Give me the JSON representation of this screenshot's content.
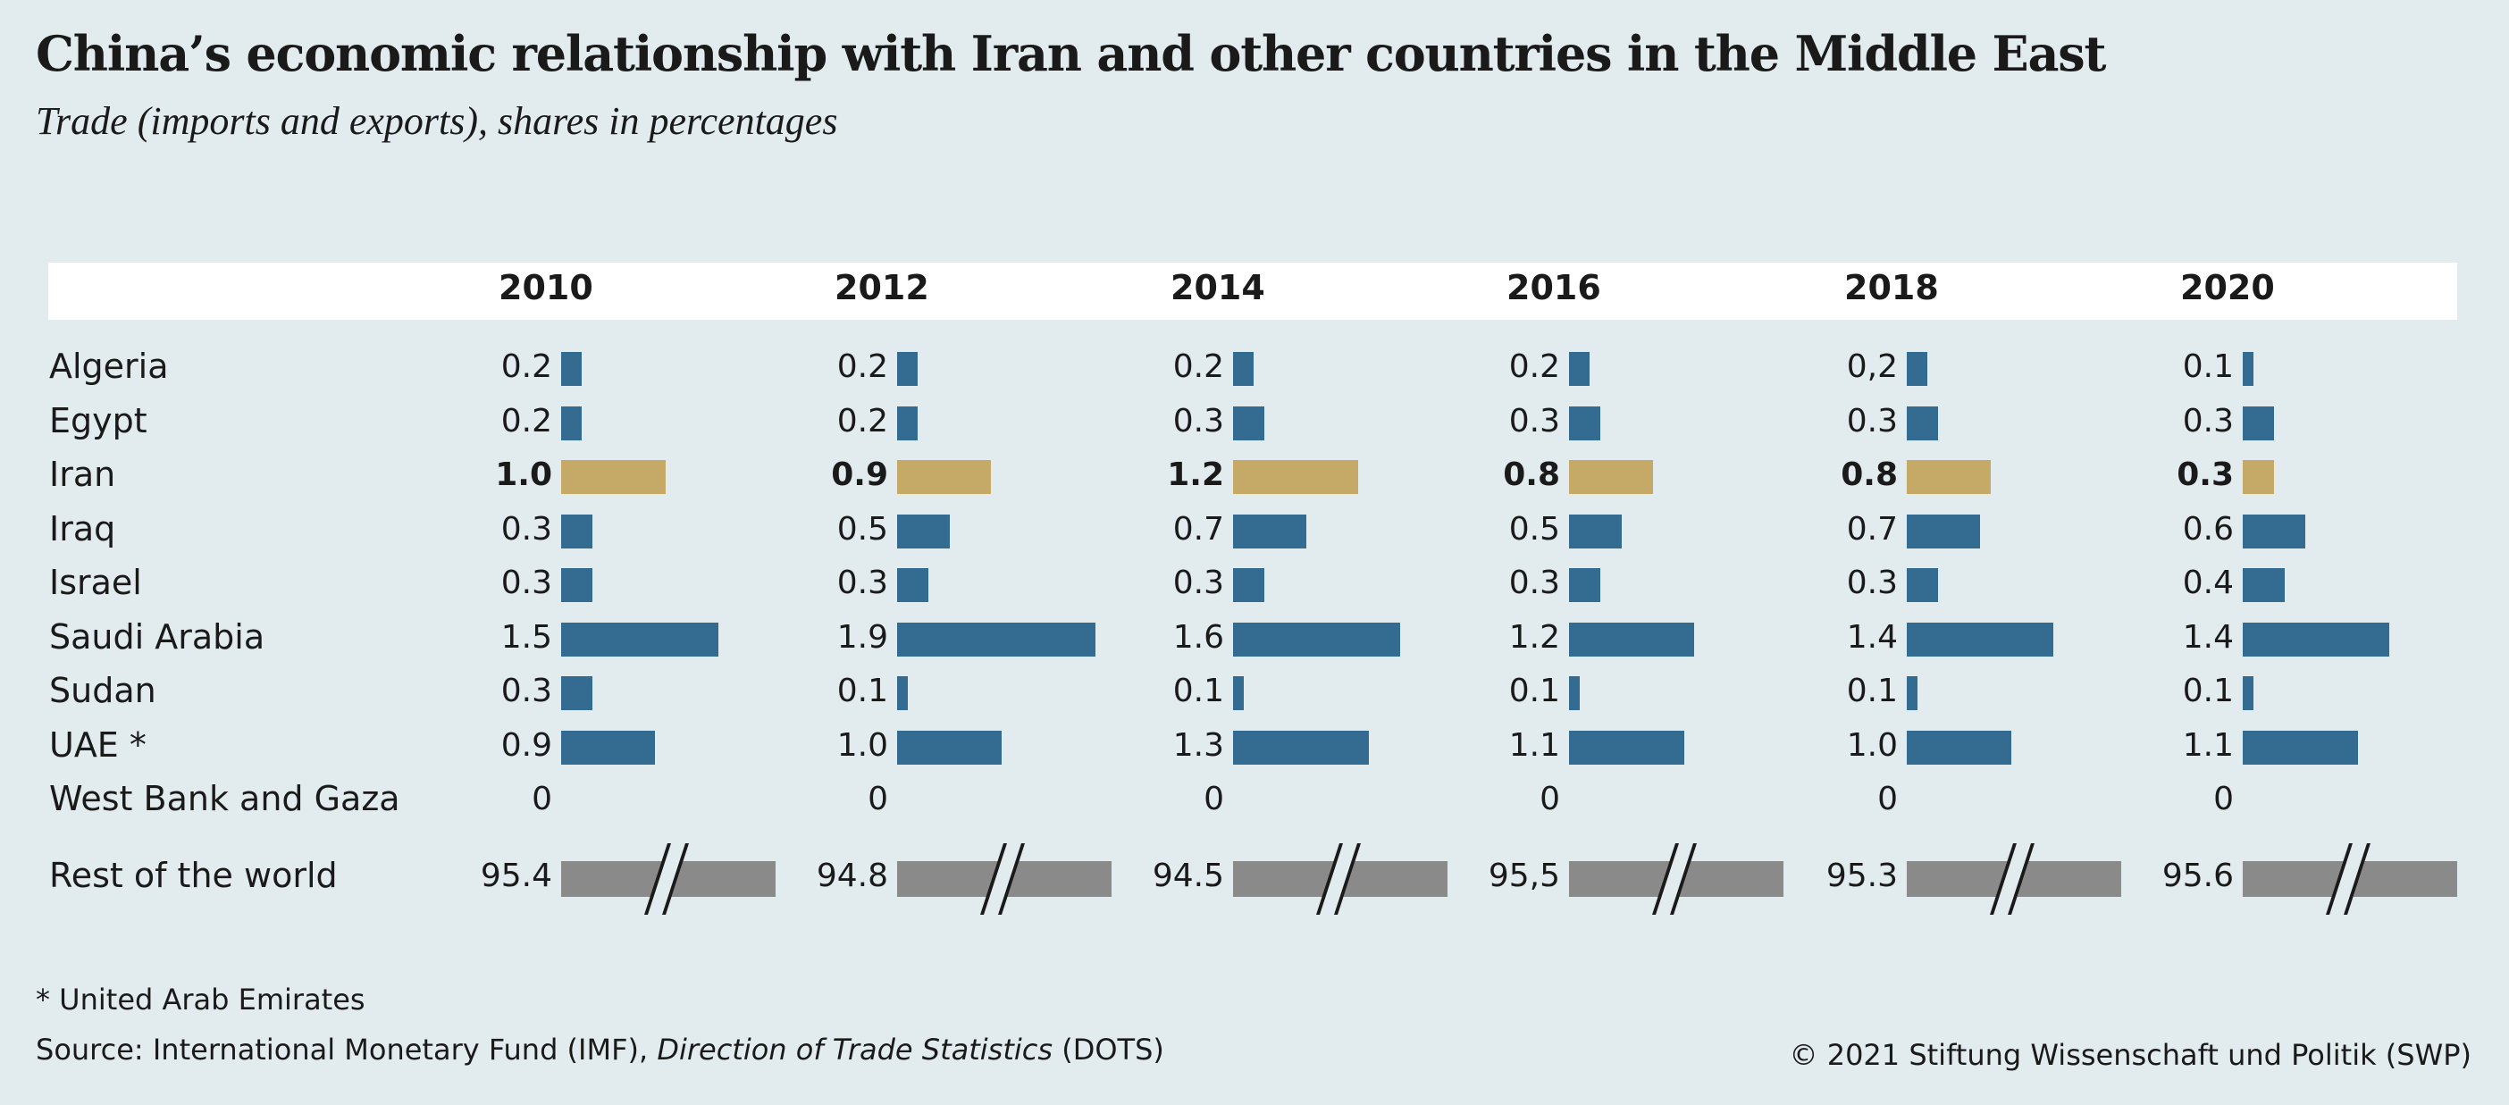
{
  "header": {
    "title": "China’s economic relationship with Iran and other countries in the Middle East",
    "subtitle": "Trade (imports and exports), shares in percentages"
  },
  "colors": {
    "bar": "#336b91",
    "highlight": "#c4aa66",
    "rest": "#8a8a8a"
  },
  "chart_data": {
    "type": "bar",
    "years": [
      "2010",
      "2012",
      "2014",
      "2016",
      "2018",
      "2020"
    ],
    "categories": [
      "Algeria",
      "Egypt",
      "Iran",
      "Iraq",
      "Israel",
      "Saudi Arabia",
      "Sudan",
      "UAE *",
      "West Bank and Gaza"
    ],
    "highlight_category": "Iran",
    "series": [
      {
        "values": [
          0.2,
          0.2,
          1.0,
          0.3,
          0.3,
          1.5,
          0.3,
          0.9,
          0
        ],
        "labels": [
          "0.2",
          "0.2",
          "1.0",
          "0.3",
          "0.3",
          "1.5",
          "0.3",
          "0.9",
          "0"
        ]
      },
      {
        "values": [
          0.2,
          0.2,
          0.9,
          0.5,
          0.3,
          1.9,
          0.1,
          1.0,
          0
        ],
        "labels": [
          "0.2",
          "0.2",
          "0.9",
          "0.5",
          "0.3",
          "1.9",
          "0.1",
          "1.0",
          "0"
        ]
      },
      {
        "values": [
          0.2,
          0.3,
          1.2,
          0.7,
          0.3,
          1.6,
          0.1,
          1.3,
          0
        ],
        "labels": [
          "0.2",
          "0.3",
          "1.2",
          "0.7",
          "0.3",
          "1.6",
          "0.1",
          "1.3",
          "0"
        ]
      },
      {
        "values": [
          0.2,
          0.3,
          0.8,
          0.5,
          0.3,
          1.2,
          0.1,
          1.1,
          0
        ],
        "labels": [
          "0.2",
          "0.3",
          "0.8",
          "0.5",
          "0.3",
          "1.2",
          "0.1",
          "1.1",
          "0"
        ]
      },
      {
        "values": [
          0.2,
          0.3,
          0.8,
          0.7,
          0.3,
          1.4,
          0.1,
          1.0,
          0
        ],
        "labels": [
          "0,2",
          "0.3",
          "0.8",
          "0.7",
          "0.3",
          "1.4",
          "0.1",
          "1.0",
          "0"
        ]
      },
      {
        "values": [
          0.1,
          0.3,
          0.3,
          0.6,
          0.4,
          1.4,
          0.1,
          1.1,
          0
        ],
        "labels": [
          "0.1",
          "0.3",
          "0.3",
          "0.6",
          "0.4",
          "1.4",
          "0.1",
          "1.1",
          "0"
        ]
      }
    ],
    "rest_of_world": {
      "label": "Rest of the world",
      "values": [
        95.4,
        94.8,
        94.5,
        95.5,
        95.3,
        95.6
      ],
      "labels": [
        "95.4",
        "94.8",
        "94.5",
        "95,5",
        "95.3",
        "95.6"
      ]
    }
  },
  "footer": {
    "footnote": "* United Arab Emirates",
    "source_prefix": "Source: International Monetary Fund (IMF), ",
    "source_italic": "Direction of Trade Statistics",
    "source_suffix": " (DOTS)",
    "copyright": "© 2021 Stiftung Wissenschaft und Politik (SWP)"
  }
}
